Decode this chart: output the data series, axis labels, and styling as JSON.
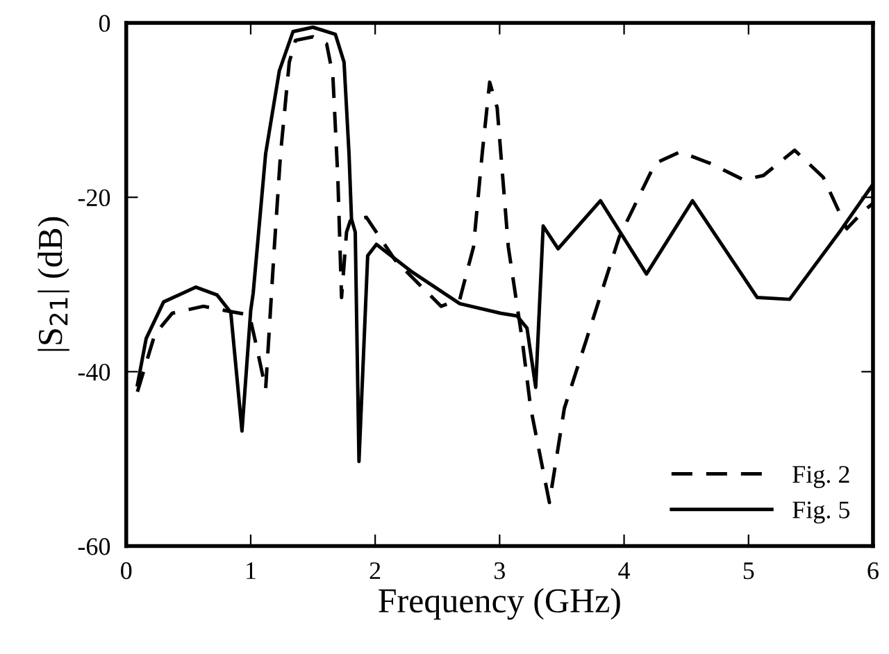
{
  "chart_data": {
    "type": "line",
    "xlabel": "Frequency (GHz)",
    "ylabel": "|S$_{21}$| (dB)",
    "xlim": [
      0,
      6
    ],
    "ylim": [
      -60,
      0
    ],
    "xticks": [
      0,
      1,
      2,
      3,
      4,
      5,
      6
    ],
    "yticks": [
      -60,
      -40,
      -20,
      0
    ],
    "grid": false,
    "legend": "lower right",
    "series": [
      {
        "name": "Fig. 2",
        "color": "#000000",
        "line_style": "dashed",
        "x": [
          0.09,
          0.23,
          0.37,
          0.62,
          0.8,
          0.99,
          1.05,
          1.12,
          1.19,
          1.24,
          1.31,
          1.36,
          1.5,
          1.61,
          1.66,
          1.7,
          1.73,
          1.77,
          1.8,
          1.93,
          2.16,
          2.53,
          2.68,
          2.79,
          2.86,
          2.92,
          2.98,
          3.07,
          3.18,
          3.25,
          3.4,
          3.52,
          3.7,
          3.96,
          4.25,
          4.45,
          4.69,
          4.96,
          5.12,
          5.37,
          5.6,
          5.79,
          5.93,
          6.0
        ],
        "values": [
          -42.3,
          -35.7,
          -33.3,
          -32.5,
          -33,
          -33.5,
          -37.3,
          -42,
          -25.7,
          -15,
          -4.5,
          -2,
          -1.6,
          -2.4,
          -6,
          -17.7,
          -31.5,
          -24,
          -22.7,
          -22.3,
          -27.2,
          -32.5,
          -31.7,
          -25.7,
          -15,
          -6.8,
          -9.7,
          -25.7,
          -36.2,
          -44.2,
          -55,
          -44.2,
          -36.2,
          -24.6,
          -16.1,
          -14.8,
          -16.1,
          -18,
          -17.5,
          -14.6,
          -17.7,
          -23.6,
          -21.5,
          -20.7
        ]
      },
      {
        "name": "Fig. 5",
        "color": "#000000",
        "line_style": "solid",
        "x": [
          0.09,
          0.16,
          0.3,
          0.56,
          0.73,
          0.84,
          0.93,
          1.0,
          1.02,
          1.12,
          1.23,
          1.34,
          1.5,
          1.68,
          1.75,
          1.79,
          1.81,
          1.84,
          1.87,
          1.94,
          2.01,
          2.3,
          2.68,
          3.01,
          3.14,
          3.22,
          3.29,
          3.35,
          3.47,
          3.81,
          4.18,
          4.55,
          5.07,
          5.33,
          5.74,
          6.0
        ],
        "values": [
          -41.5,
          -36.2,
          -32,
          -30.3,
          -31.2,
          -33.2,
          -46.8,
          -33,
          -31,
          -15,
          -5.5,
          -1,
          -0.5,
          -1.3,
          -4.5,
          -15,
          -22.5,
          -24,
          -50.3,
          -26.7,
          -25.4,
          -28.6,
          -32.2,
          -33.3,
          -33.6,
          -35,
          -41.8,
          -23.3,
          -25.9,
          -20.4,
          -28.8,
          -20.4,
          -31.5,
          -31.7,
          -23.8,
          -18.5
        ]
      }
    ]
  }
}
